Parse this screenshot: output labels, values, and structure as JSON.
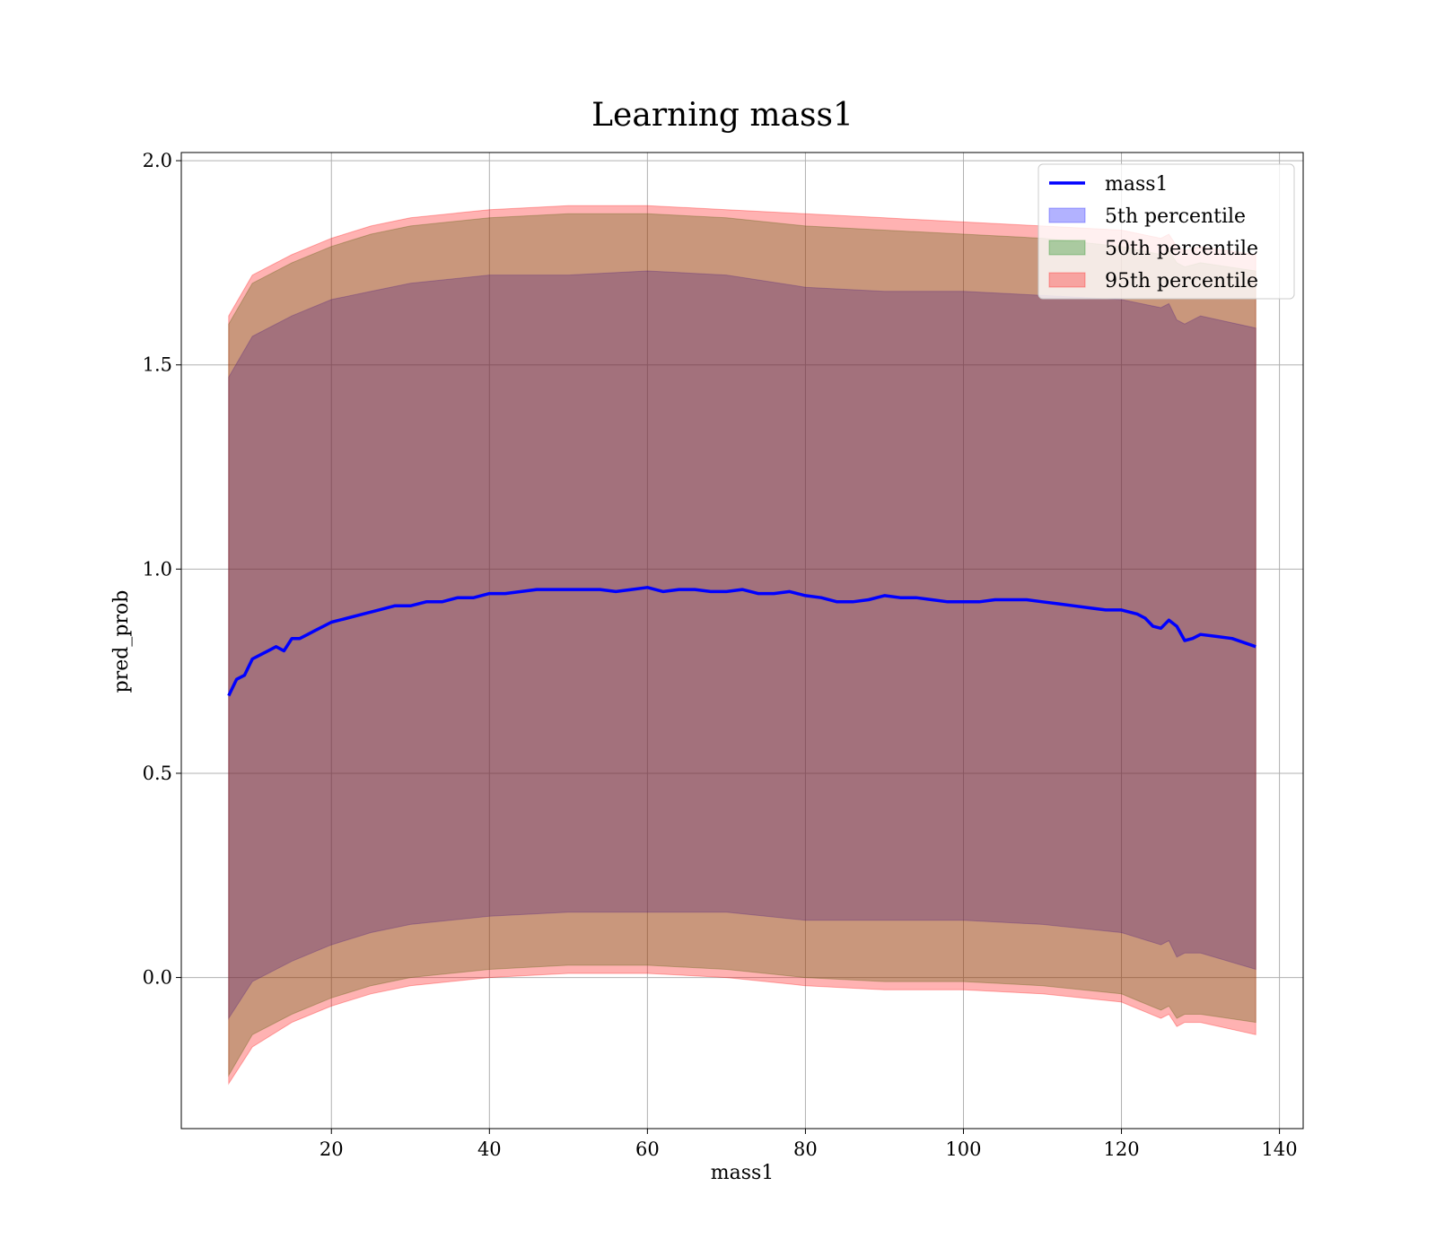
{
  "chart_data": {
    "type": "line",
    "title": "Learning mass1",
    "xlabel": "mass1",
    "ylabel": "pred_prob",
    "xlim": [
      1,
      143
    ],
    "ylim": [
      -0.37,
      2.02
    ],
    "xticks": [
      20,
      40,
      60,
      80,
      100,
      120,
      140
    ],
    "xtick_labels": [
      "20",
      "40",
      "60",
      "80",
      "100",
      "120",
      "140"
    ],
    "yticks": [
      0.0,
      0.5,
      1.0,
      1.5,
      2.0
    ],
    "ytick_labels": [
      "0.0",
      "0.5",
      "1.0",
      "1.5",
      "2.0"
    ],
    "grid": true,
    "legend_position": "top-right",
    "series": [
      {
        "name": "mass1",
        "kind": "line",
        "color": "#0000ff",
        "x": [
          7,
          8,
          9,
          10,
          11,
          12,
          13,
          14,
          15,
          16,
          17,
          18,
          20,
          22,
          24,
          26,
          28,
          30,
          32,
          34,
          36,
          38,
          40,
          42,
          44,
          46,
          48,
          50,
          52,
          54,
          56,
          58,
          60,
          62,
          64,
          66,
          68,
          70,
          72,
          74,
          76,
          78,
          80,
          82,
          84,
          86,
          88,
          90,
          92,
          94,
          96,
          98,
          100,
          102,
          104,
          106,
          108,
          110,
          112,
          114,
          116,
          118,
          120,
          122,
          123,
          124,
          125,
          126,
          127,
          128,
          129,
          130,
          132,
          134,
          137
        ],
        "y": [
          0.69,
          0.73,
          0.74,
          0.78,
          0.79,
          0.8,
          0.81,
          0.8,
          0.83,
          0.83,
          0.84,
          0.85,
          0.87,
          0.88,
          0.89,
          0.9,
          0.91,
          0.91,
          0.92,
          0.92,
          0.93,
          0.93,
          0.94,
          0.94,
          0.945,
          0.95,
          0.95,
          0.95,
          0.95,
          0.95,
          0.945,
          0.95,
          0.955,
          0.945,
          0.95,
          0.95,
          0.945,
          0.945,
          0.95,
          0.94,
          0.94,
          0.945,
          0.935,
          0.93,
          0.92,
          0.92,
          0.925,
          0.935,
          0.93,
          0.93,
          0.925,
          0.92,
          0.92,
          0.92,
          0.925,
          0.925,
          0.925,
          0.92,
          0.915,
          0.91,
          0.905,
          0.9,
          0.9,
          0.89,
          0.88,
          0.86,
          0.855,
          0.875,
          0.86,
          0.825,
          0.83,
          0.84,
          0.835,
          0.83,
          0.81
        ]
      },
      {
        "name": "5th percentile",
        "kind": "band",
        "color": "#0000ff",
        "x": [
          7,
          10,
          15,
          20,
          25,
          30,
          40,
          50,
          60,
          70,
          80,
          90,
          100,
          110,
          120,
          125,
          126,
          127,
          128,
          130,
          137
        ],
        "lower": [
          -0.1,
          -0.01,
          0.04,
          0.08,
          0.11,
          0.13,
          0.15,
          0.16,
          0.16,
          0.16,
          0.14,
          0.14,
          0.14,
          0.13,
          0.11,
          0.08,
          0.09,
          0.05,
          0.06,
          0.06,
          0.02
        ],
        "upper": [
          1.47,
          1.57,
          1.62,
          1.66,
          1.68,
          1.7,
          1.72,
          1.72,
          1.73,
          1.72,
          1.69,
          1.68,
          1.68,
          1.67,
          1.66,
          1.64,
          1.65,
          1.61,
          1.6,
          1.62,
          1.59
        ]
      },
      {
        "name": "50th percentile",
        "kind": "band",
        "color": "#008000",
        "x": [
          7,
          10,
          15,
          20,
          25,
          30,
          40,
          50,
          60,
          70,
          80,
          90,
          100,
          110,
          120,
          125,
          126,
          127,
          128,
          130,
          137
        ],
        "lower": [
          -0.24,
          -0.14,
          -0.09,
          -0.05,
          -0.02,
          0.0,
          0.02,
          0.03,
          0.03,
          0.02,
          0.0,
          -0.01,
          -0.01,
          -0.02,
          -0.04,
          -0.08,
          -0.07,
          -0.1,
          -0.09,
          -0.09,
          -0.11
        ],
        "upper": [
          1.6,
          1.7,
          1.75,
          1.79,
          1.82,
          1.84,
          1.86,
          1.87,
          1.87,
          1.86,
          1.84,
          1.83,
          1.82,
          1.81,
          1.79,
          1.77,
          1.78,
          1.75,
          1.74,
          1.75,
          1.73
        ]
      },
      {
        "name": "95th percentile",
        "kind": "band",
        "color": "#ff0000",
        "x": [
          7,
          10,
          15,
          20,
          25,
          30,
          40,
          50,
          60,
          70,
          80,
          90,
          100,
          110,
          120,
          125,
          126,
          127,
          128,
          130,
          137
        ],
        "lower": [
          -0.26,
          -0.17,
          -0.11,
          -0.07,
          -0.04,
          -0.02,
          0.0,
          0.01,
          0.01,
          0.0,
          -0.02,
          -0.03,
          -0.03,
          -0.04,
          -0.06,
          -0.1,
          -0.09,
          -0.12,
          -0.11,
          -0.11,
          -0.14
        ],
        "upper": [
          1.62,
          1.72,
          1.77,
          1.81,
          1.84,
          1.86,
          1.88,
          1.89,
          1.89,
          1.88,
          1.87,
          1.86,
          1.85,
          1.84,
          1.83,
          1.81,
          1.82,
          1.79,
          1.78,
          1.79,
          1.77
        ]
      }
    ]
  }
}
